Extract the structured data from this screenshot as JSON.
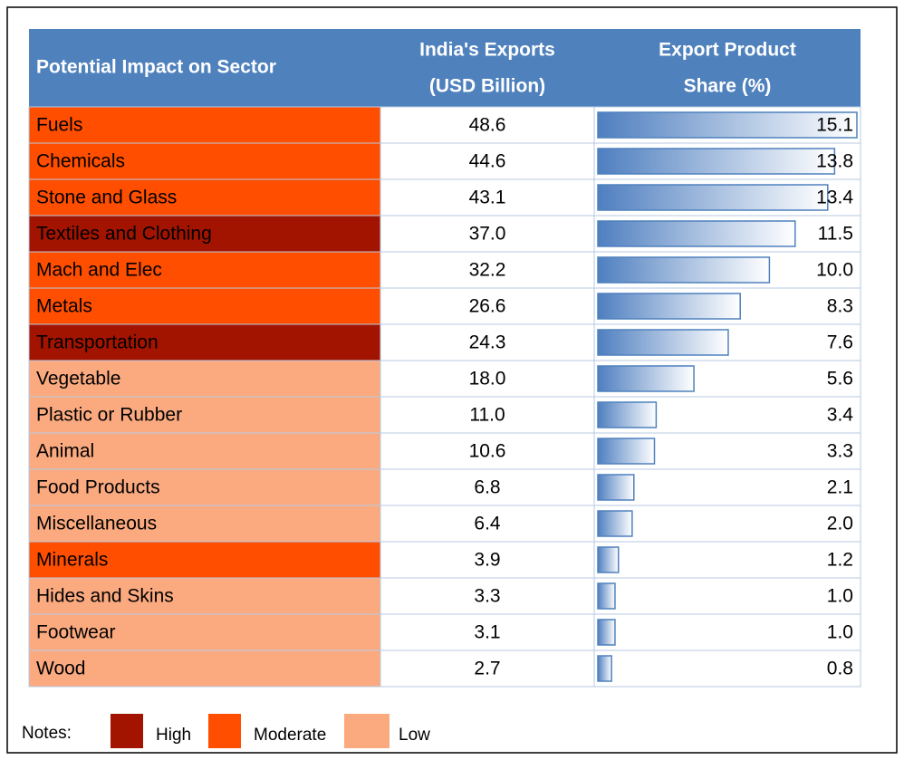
{
  "table": {
    "header": [
      "Potential Impact on Sector",
      "India's Exports",
      "(USD Billion)",
      "Export Product",
      "Share (%)"
    ],
    "rows": [
      {
        "sector": "Fuels",
        "exports": "48.6",
        "share": 15.1,
        "share_label": "15.1",
        "color": "#ff4e00"
      },
      {
        "sector": "Chemicals",
        "exports": "44.6",
        "share": 13.8,
        "share_label": "13.8",
        "color": "#ff4e00"
      },
      {
        "sector": "Stone and Glass",
        "exports": "43.1",
        "share": 13.4,
        "share_label": "13.4",
        "color": "#ff4e00"
      },
      {
        "sector": "Textiles and Clothing",
        "exports": "37.0",
        "share": 11.5,
        "share_label": "11.5",
        "color": "#a31400"
      },
      {
        "sector": "Mach and Elec",
        "exports": "32.2",
        "share": 10.0,
        "share_label": "10.0",
        "color": "#ff4e00"
      },
      {
        "sector": "Metals",
        "exports": "26.6",
        "share": 8.3,
        "share_label": "8.3",
        "color": "#ff4e00"
      },
      {
        "sector": "Transportation",
        "exports": "24.3",
        "share": 7.6,
        "share_label": "7.6",
        "color": "#a31400"
      },
      {
        "sector": "Vegetable",
        "exports": "18.0",
        "share": 5.6,
        "share_label": "5.6",
        "color": "#fbaa80"
      },
      {
        "sector": "Plastic or Rubber",
        "exports": "11.0",
        "share": 3.4,
        "share_label": "3.4",
        "color": "#fbaa80"
      },
      {
        "sector": "Animal",
        "exports": "10.6",
        "share": 3.3,
        "share_label": "3.3",
        "color": "#fbaa80"
      },
      {
        "sector": "Food Products",
        "exports": "6.8",
        "share": 2.1,
        "share_label": "2.1",
        "color": "#fbaa80"
      },
      {
        "sector": "Miscellaneous",
        "exports": "6.4",
        "share": 2.0,
        "share_label": "2.0",
        "color": "#fbaa80"
      },
      {
        "sector": "Minerals",
        "exports": "3.9",
        "share": 1.2,
        "share_label": "1.2",
        "color": "#ff4e00"
      },
      {
        "sector": "Hides and Skins",
        "exports": "3.3",
        "share": 1.0,
        "share_label": "1.0",
        "color": "#fbaa80"
      },
      {
        "sector": "Footwear",
        "exports": "3.1",
        "share": 1.0,
        "share_label": "1.0",
        "color": "#fbaa80"
      },
      {
        "sector": "Wood",
        "exports": "2.7",
        "share": 0.8,
        "share_label": "0.8",
        "color": "#fbaa80"
      }
    ]
  },
  "notes": {
    "label": "Notes:",
    "legend": [
      {
        "label": "High",
        "color": "#a31400"
      },
      {
        "label": "Moderate",
        "color": "#ff4e00"
      },
      {
        "label": "Low",
        "color": "#fbaa80"
      }
    ]
  }
}
